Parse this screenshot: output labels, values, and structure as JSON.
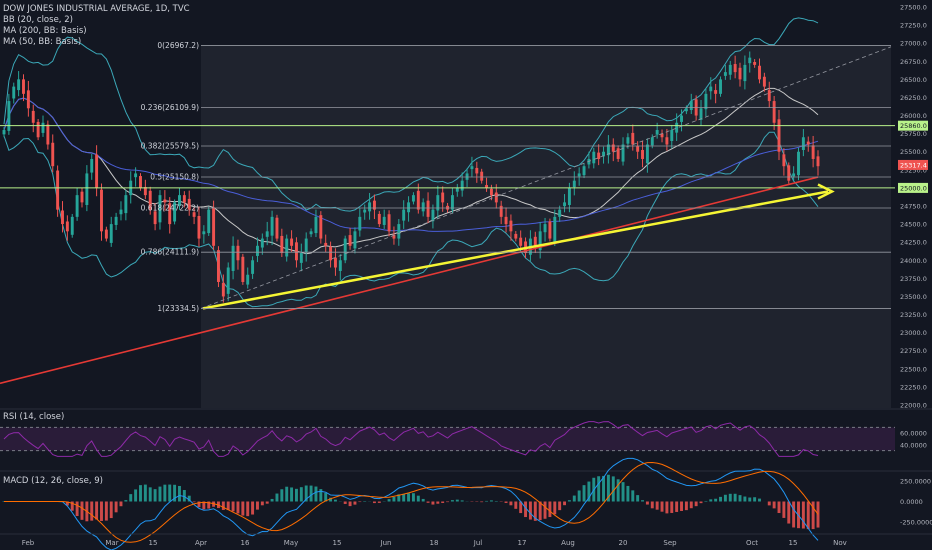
{
  "legend": {
    "title": "DOW JONES INDUSTRIAL AVERAGE, 1D, TVC",
    "bb": "BB (20, close, 2)",
    "ma200": "MA (200, BB: Basis)",
    "ma50": "MA (50, BB: Basis)"
  },
  "rsi_label": "RSI (14, close)",
  "macd_label": "MACD (12, 26, close, 9)",
  "colors": {
    "background": "#131722",
    "up": "#26a69a",
    "down": "#ef5350",
    "bands": "#3ba8b8",
    "ma50": "#c8c8c8",
    "ma200": "#4a5ed8",
    "trend_red": "#e53935",
    "arrow_yellow": "#f5f534",
    "level_green": "#b9f28a",
    "rsi_line": "#8e2aa8"
  },
  "chart_data": [
    {
      "type": "candlestick",
      "title": "DOW JONES INDUSTRIAL AVERAGE, 1D, TVC",
      "ylim": [
        22000,
        27500
      ],
      "y_ticks": [
        "22000.0",
        "22250.0",
        "22500.0",
        "22750.0",
        "23000.0",
        "23250.0",
        "23500.0",
        "23750.0",
        "24000.0",
        "24250.0",
        "24500.0",
        "24750.0",
        "25000.0",
        "25250.0",
        "25500.0",
        "25750.0",
        "26000.0",
        "26250.0",
        "26500.0",
        "26750.0",
        "27000.0",
        "27250.0",
        "27500.0"
      ],
      "x_tick_labels": [
        "Feb",
        "Mar",
        "15",
        "Apr",
        "16",
        "May",
        "15",
        "Jun",
        "18",
        "Jul",
        "17",
        "Aug",
        "20",
        "Sep",
        "Oct",
        "15",
        "Nov"
      ],
      "fib_levels": [
        {
          "label": "0(26967.2)",
          "value": 26967.2
        },
        {
          "label": "0.236(26109.9)",
          "value": 26109.9
        },
        {
          "label": "0.382(25579.5)",
          "value": 25579.5
        },
        {
          "label": "0.5(25150.8)",
          "value": 25150.8
        },
        {
          "label": "0.618(24722.2)",
          "value": 24722.2
        },
        {
          "label": "0.786(24111.9)",
          "value": 24111.9
        },
        {
          "label": "1(23334.5)",
          "value": 23334.5
        }
      ],
      "horizontal_levels": [
        {
          "label": "25860.0",
          "value": 25860
        },
        {
          "label": "25000.0",
          "value": 25000
        }
      ],
      "last_price": {
        "label": "25317.4",
        "value": 25317.4
      },
      "closes": [
        25800,
        26200,
        26400,
        26500,
        26300,
        26100,
        25900,
        25700,
        25900,
        25600,
        25300,
        24700,
        24500,
        24400,
        24600,
        24900,
        24800,
        25200,
        25400,
        25000,
        24400,
        24300,
        24500,
        24600,
        24700,
        24900,
        25100,
        25200,
        25000,
        24900,
        24700,
        24500,
        24900,
        24800,
        24500,
        24800,
        24900,
        24800,
        24700,
        24600,
        24300,
        24400,
        24700,
        24200,
        23700,
        23500,
        23900,
        24200,
        24000,
        23700,
        23800,
        24000,
        24200,
        24300,
        24400,
        24600,
        24300,
        24100,
        24300,
        24200,
        24000,
        24100,
        24300,
        24400,
        24600,
        24300,
        24200,
        24000,
        23900,
        24000,
        24300,
        24200,
        24400,
        24600,
        24700,
        24800,
        24700,
        24500,
        24600,
        24400,
        24300,
        24500,
        24700,
        24800,
        24900,
        24700,
        24800,
        24600,
        24700,
        24900,
        24800,
        24700,
        24900,
        25000,
        25100,
        25200,
        25300,
        25200,
        25100,
        25000,
        24900,
        24800,
        24600,
        24500,
        24400,
        24300,
        24200,
        24100,
        24300,
        24200,
        24400,
        24500,
        24300,
        24600,
        24700,
        24800,
        25000,
        25100,
        25200,
        25300,
        25400,
        25500,
        25400,
        25500,
        25600,
        25500,
        25400,
        25600,
        25700,
        25600,
        25500,
        25400,
        25600,
        25700,
        25800,
        25700,
        25600,
        25800,
        25900,
        26000,
        26100,
        26200,
        26000,
        26100,
        26300,
        26400,
        26300,
        26500,
        26600,
        26700,
        26600,
        26500,
        26700,
        26800,
        26700,
        26500,
        26400,
        26200,
        25900,
        25500,
        25300,
        25100,
        25200,
        25500,
        25700,
        25600,
        25400,
        25300
      ],
      "rsi": {
        "ylim": [
          0,
          100
        ],
        "y_ticks": [
          "40.0000",
          "60.0000"
        ],
        "bands": [
          30,
          70
        ]
      },
      "macd": {
        "ylim": [
          -350,
          350
        ],
        "y_ticks": [
          "250.0000",
          "0.0000",
          "-250.0000"
        ]
      }
    }
  ]
}
